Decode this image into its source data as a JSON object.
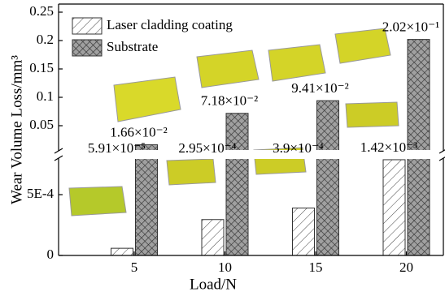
{
  "chart_data": {
    "type": "bar",
    "x_label": "Load/N",
    "y_label": "Wear Volume Loss/mm³",
    "categories": [
      "5",
      "10",
      "15",
      "20"
    ],
    "series": [
      {
        "name": "Laser cladding coating",
        "color": "#ffffff",
        "values": [
          5.91e-05,
          0.000295,
          0.00039,
          0.00142
        ],
        "value_labels": [
          "5.91×10⁻⁵",
          "2.95×10⁻⁴",
          "3.9×10⁻⁴",
          "1.42×10⁻³"
        ]
      },
      {
        "name": "Substrate",
        "color": "#a0a0a0",
        "values": [
          0.0166,
          0.0718,
          0.0941,
          0.202
        ],
        "value_labels": [
          "1.66×10⁻²",
          "7.18×10⁻²",
          "9.41×10⁻²",
          "2.02×10⁻¹"
        ]
      }
    ],
    "ylim_lower": [
      0,
      0.00078
    ],
    "yticks_lower": [
      0,
      {
        "value": 0.0005,
        "label": "5E-4"
      }
    ],
    "ylim_upper": [
      0.01,
      0.25
    ],
    "yticks_upper": [
      0.05,
      0.1,
      0.15,
      0.2,
      0.25
    ],
    "legend": "top-left"
  }
}
